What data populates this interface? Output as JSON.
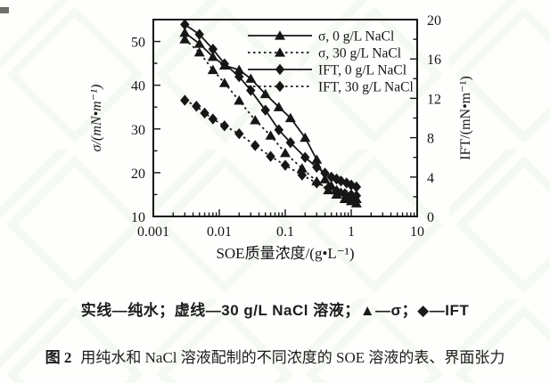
{
  "figure": {
    "caption_line1": "实线—纯水；虚线—30 g/L NaCl 溶液；▲—σ；◆—IFT",
    "caption2_label": "图 2",
    "caption2_text": "用纯水和 NaCl 溶液配制的不同浓度的 SOE 溶液的表、界面张力"
  },
  "chart_data": {
    "type": "line",
    "title": "",
    "grid": false,
    "ink_color": "#161616",
    "watermark_color": "#e1eedd",
    "x_axis": {
      "label": "SOE质量浓度/(g•L⁻¹)",
      "scale": "log",
      "range": [
        0.001,
        10
      ],
      "major_ticks": [
        0.001,
        0.01,
        0.1,
        1,
        10
      ]
    },
    "y_axis_left": {
      "label": "σ/(mN•m⁻¹)",
      "range": [
        10,
        55
      ],
      "major_ticks": [
        10,
        20,
        30,
        40,
        50
      ],
      "minor_step": 5
    },
    "y_axis_right": {
      "label": "IFT/(mN•m⁻¹)",
      "range": [
        0,
        20
      ],
      "major_ticks": [
        0,
        4,
        8,
        12,
        16,
        20
      ],
      "minor_step": 2
    },
    "legend_position": "top-right-inside",
    "series": [
      {
        "name": "σ, 0 g/L NaCl",
        "axis": "left",
        "line": "solid",
        "marker": "triangle",
        "points": [
          [
            0.003,
            52
          ],
          [
            0.005,
            49.5
          ],
          [
            0.008,
            46.5
          ],
          [
            0.012,
            44.5
          ],
          [
            0.02,
            43.5
          ],
          [
            0.03,
            41.5
          ],
          [
            0.05,
            38
          ],
          [
            0.08,
            35
          ],
          [
            0.12,
            32.5
          ],
          [
            0.2,
            28
          ],
          [
            0.3,
            23
          ],
          [
            0.4,
            18.5
          ],
          [
            0.5,
            17
          ],
          [
            0.6,
            16
          ],
          [
            0.7,
            15.5
          ],
          [
            0.85,
            15
          ],
          [
            1,
            14.5
          ],
          [
            1.2,
            14
          ]
        ]
      },
      {
        "name": "σ, 30 g/L NaCl",
        "axis": "left",
        "line": "dotted",
        "marker": "triangle",
        "points": [
          [
            0.003,
            50.5
          ],
          [
            0.005,
            47.5
          ],
          [
            0.008,
            43.5
          ],
          [
            0.012,
            40.5
          ],
          [
            0.02,
            36.5
          ],
          [
            0.035,
            32
          ],
          [
            0.06,
            28.5
          ],
          [
            0.1,
            24.5
          ],
          [
            0.18,
            21
          ],
          [
            0.3,
            18
          ],
          [
            0.45,
            16
          ],
          [
            0.6,
            15
          ],
          [
            0.8,
            14
          ],
          [
            1,
            13.5
          ],
          [
            1.2,
            13
          ]
        ]
      },
      {
        "name": "IFT, 0 g/L NaCl",
        "axis": "right",
        "line": "solid",
        "marker": "diamond",
        "points": [
          [
            0.003,
            19.5
          ],
          [
            0.005,
            18.5
          ],
          [
            0.008,
            17
          ],
          [
            0.012,
            15.5
          ],
          [
            0.02,
            14.2
          ],
          [
            0.03,
            12.8
          ],
          [
            0.05,
            10.8
          ],
          [
            0.08,
            8.8
          ],
          [
            0.12,
            7.5
          ],
          [
            0.2,
            6
          ],
          [
            0.3,
            5
          ],
          [
            0.4,
            4.4
          ],
          [
            0.5,
            4
          ],
          [
            0.6,
            3.8
          ],
          [
            0.7,
            3.6
          ],
          [
            0.85,
            3.4
          ],
          [
            1,
            3.2
          ],
          [
            1.2,
            3
          ]
        ]
      },
      {
        "name": "IFT, 30 g/L NaCl",
        "axis": "right",
        "line": "dotted",
        "marker": "diamond",
        "points": [
          [
            0.003,
            11.8
          ],
          [
            0.0045,
            11.2
          ],
          [
            0.006,
            10.5
          ],
          [
            0.008,
            9.9
          ],
          [
            0.012,
            9.2
          ],
          [
            0.02,
            8.4
          ],
          [
            0.035,
            7.2
          ],
          [
            0.06,
            6.1
          ],
          [
            0.1,
            5.2
          ],
          [
            0.18,
            4.2
          ],
          [
            0.3,
            3.4
          ],
          [
            0.45,
            2.9
          ],
          [
            0.6,
            2.6
          ],
          [
            0.8,
            2.3
          ],
          [
            1,
            2.2
          ],
          [
            1.2,
            2.1
          ]
        ]
      }
    ]
  }
}
